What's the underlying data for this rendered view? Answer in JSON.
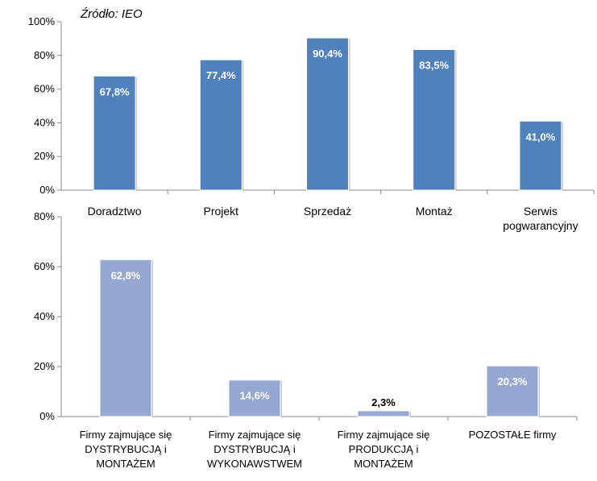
{
  "source_note": "Źródło: IEO",
  "colors": {
    "top_bar": "#4f81bd",
    "bottom_bar": "#95a8d2",
    "axis": "#888888"
  },
  "chart_data": [
    {
      "type": "bar",
      "title": "",
      "categories": [
        [
          "Doradztwo"
        ],
        [
          "Projekt"
        ],
        [
          "Sprzedaż"
        ],
        [
          "Montaż"
        ],
        [
          "Serwis",
          "pogwarancyjny"
        ]
      ],
      "values": [
        67.8,
        77.4,
        90.4,
        83.5,
        41.0
      ],
      "data_labels": [
        "67,8%",
        "77,4%",
        "90,4%",
        "83,5%",
        "41,0%"
      ],
      "ylim": [
        0,
        100
      ],
      "yticks": [
        "0%",
        "20%",
        "40%",
        "60%",
        "80%",
        "100%"
      ],
      "grid": false
    },
    {
      "type": "bar",
      "title": "",
      "categories": [
        [
          "Firmy zajmujące się",
          "DYSTRYBUCJĄ i",
          "MONTAŻEM"
        ],
        [
          "Firmy zajmujące się",
          "DYSTRYBUCJĄ i",
          "WYKONAWSTWEM"
        ],
        [
          "Firmy zajmujące się",
          "PRODUKCJĄ i",
          "MONTAŻEM"
        ],
        [
          "POZOSTAŁE firmy"
        ]
      ],
      "values": [
        62.8,
        14.6,
        2.3,
        20.3
      ],
      "data_labels": [
        "62,8%",
        "14,6%",
        "2,3%",
        "20,3%"
      ],
      "ylim": [
        0,
        80
      ],
      "yticks": [
        "0%",
        "20%",
        "40%",
        "60%",
        "80%"
      ],
      "grid": false
    }
  ]
}
